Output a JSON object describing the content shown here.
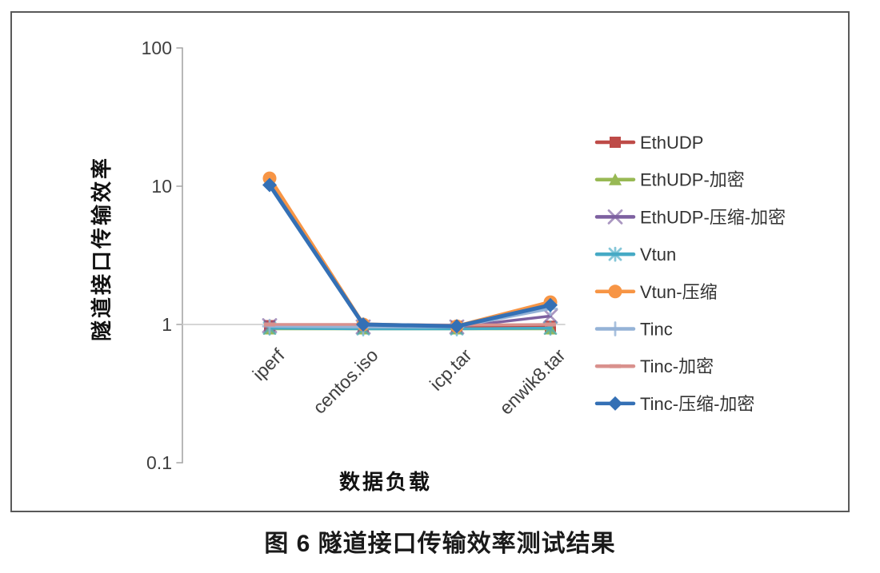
{
  "figure": {
    "caption": "图 6  隧道接口传输效率测试结果"
  },
  "colors": {
    "frame": "#595959",
    "axis_line": "#A6A6A6",
    "gridline": "#C9C9C9",
    "tick_text": "#404040",
    "legend_text": "#333333"
  },
  "chart_data": {
    "type": "line",
    "title": "",
    "xlabel": "数据负载",
    "ylabel": "隧道接口传输效率",
    "y_scale": "log",
    "ylim": [
      0.1,
      100
    ],
    "y_ticks": [
      "100",
      "10",
      "1",
      "0.1"
    ],
    "grid": "single horizontal line at y=1 (category axis crosses at 1)",
    "legend_position": "right",
    "categories": [
      "iperf",
      "centos.iso",
      "icp.tar",
      "enwik8.tar"
    ],
    "series": [
      {
        "name": "EthUDP",
        "color": "#BE4B48",
        "marker": "square",
        "line_width": 3.5,
        "values": [
          0.98,
          0.97,
          0.97,
          0.97
        ]
      },
      {
        "name": "EthUDP-加密",
        "color": "#98B954",
        "marker": "triangle",
        "line_width": 3.5,
        "values": [
          0.93,
          0.93,
          0.93,
          0.93
        ]
      },
      {
        "name": "EthUDP-压缩-加密",
        "color": "#7D60A0",
        "marker": "x",
        "line_width": 3.5,
        "values": [
          0.98,
          0.96,
          0.96,
          1.15
        ]
      },
      {
        "name": "Vtun",
        "color": "#46AAC5",
        "marker": "asterisk",
        "line_width": 3.5,
        "values": [
          0.94,
          0.93,
          0.93,
          0.94
        ]
      },
      {
        "name": "Vtun-压缩",
        "color": "#F79545",
        "marker": "circle",
        "line_width": 5,
        "values": [
          11.4,
          1.0,
          0.97,
          1.45
        ]
      },
      {
        "name": "Tinc",
        "color": "#95B3D7",
        "marker": "plus",
        "line_width": 3.5,
        "values": [
          0.97,
          0.96,
          0.96,
          1.3
        ]
      },
      {
        "name": "Tinc-加密",
        "color": "#D9918D",
        "marker": "dash",
        "line_width": 3.5,
        "values": [
          1.0,
          1.0,
          0.99,
          1.0
        ]
      },
      {
        "name": "Tinc-压缩-加密",
        "color": "#3470B5",
        "marker": "diamond",
        "line_width": 5,
        "values": [
          10.2,
          1.0,
          0.97,
          1.38
        ]
      }
    ]
  }
}
